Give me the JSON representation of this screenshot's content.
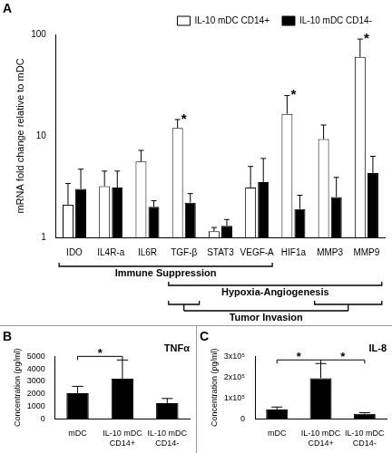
{
  "chart_data": [
    {
      "panel_label": "A",
      "type": "bar",
      "log": "y",
      "categories": [
        "IDO",
        "IL4R-a",
        "IL6R",
        "TGF-β",
        "STAT3",
        "VEGF-A",
        "HIF1a",
        "MMP3",
        "MMP9"
      ],
      "series": [
        {
          "name": "IL-10 mDC CD14+",
          "color": "#ffffff",
          "values": [
            2.1,
            3.2,
            5.6,
            12,
            1.15,
            3.1,
            16.5,
            9.3,
            60
          ],
          "errors": [
            1.3,
            1.3,
            1.6,
            2.5,
            0.1,
            1.9,
            8.5,
            3.5,
            30
          ]
        },
        {
          "name": "IL-10 mDC CD14-",
          "color": "#000000",
          "values": [
            3.0,
            3.1,
            2.0,
            2.2,
            1.3,
            3.5,
            1.9,
            2.5,
            4.3
          ],
          "errors": [
            1.7,
            1.4,
            0.3,
            0.5,
            0.2,
            2.5,
            0.7,
            1.4,
            2.0
          ]
        }
      ],
      "y_label": "mRNA fold change relative to mDC",
      "ylim": [
        1,
        100
      ],
      "yticks": [
        1,
        10,
        100
      ],
      "grid": false,
      "legend": "upper right",
      "annotations": [
        {
          "category": "TGF-β",
          "text": "*"
        },
        {
          "category": "HIF1a",
          "text": "*"
        },
        {
          "category": "MMP9",
          "text": "*"
        }
      ],
      "groups": [
        {
          "text": "Immune Suppression",
          "spans": [
            [
              "IDO",
              "VEGF-A"
            ]
          ]
        },
        {
          "text": "Hypoxia-Angiogenesis",
          "spans": [
            [
              "TGF-β",
              "MMP9"
            ]
          ]
        },
        {
          "text": "Tumor Invasion",
          "spans": [
            [
              "TGF-β",
              "TGF-β"
            ],
            [
              "MMP3",
              "MMP9"
            ]
          ]
        }
      ]
    },
    {
      "panel_label": "B",
      "type": "bar",
      "title": "TNFα",
      "categories": [
        "mDC",
        "IL-10 mDC CD14+",
        "IL-10 mDC CD14-"
      ],
      "values": [
        2050,
        3200,
        1250
      ],
      "errors": [
        550,
        1500,
        380
      ],
      "color": "#000000",
      "y_label": "Concentration (pg/ml)",
      "ylim": [
        0,
        5000
      ],
      "yticks": [
        0,
        1000,
        2000,
        3000,
        4000,
        5000
      ],
      "grid": false,
      "significance": [
        {
          "from": "mDC",
          "to": "IL-10 mDC CD14+",
          "text": "*"
        }
      ]
    },
    {
      "panel_label": "C",
      "type": "bar",
      "title": "IL-8",
      "categories": [
        "mDC",
        "IL-10 mDC CD14+",
        "IL-10 mDC CD14-"
      ],
      "values": [
        45000,
        195000,
        25000
      ],
      "errors": [
        12000,
        70000,
        5000
      ],
      "color": "#000000",
      "y_label": "Concentration (pg/ml)",
      "ylim": [
        0,
        300000
      ],
      "yticks": [
        0,
        {
          "value": 100000,
          "label": "1x10⁵"
        },
        {
          "value": 200000,
          "label": "2x10⁵"
        },
        {
          "value": 300000,
          "label": "3x10⁵"
        }
      ],
      "grid": false,
      "significance": [
        {
          "from": "mDC",
          "to": "IL-10 mDC CD14+",
          "text": "*"
        },
        {
          "from": "IL-10 mDC CD14+",
          "to": "IL-10 mDC CD14-",
          "text": "*"
        }
      ]
    }
  ]
}
